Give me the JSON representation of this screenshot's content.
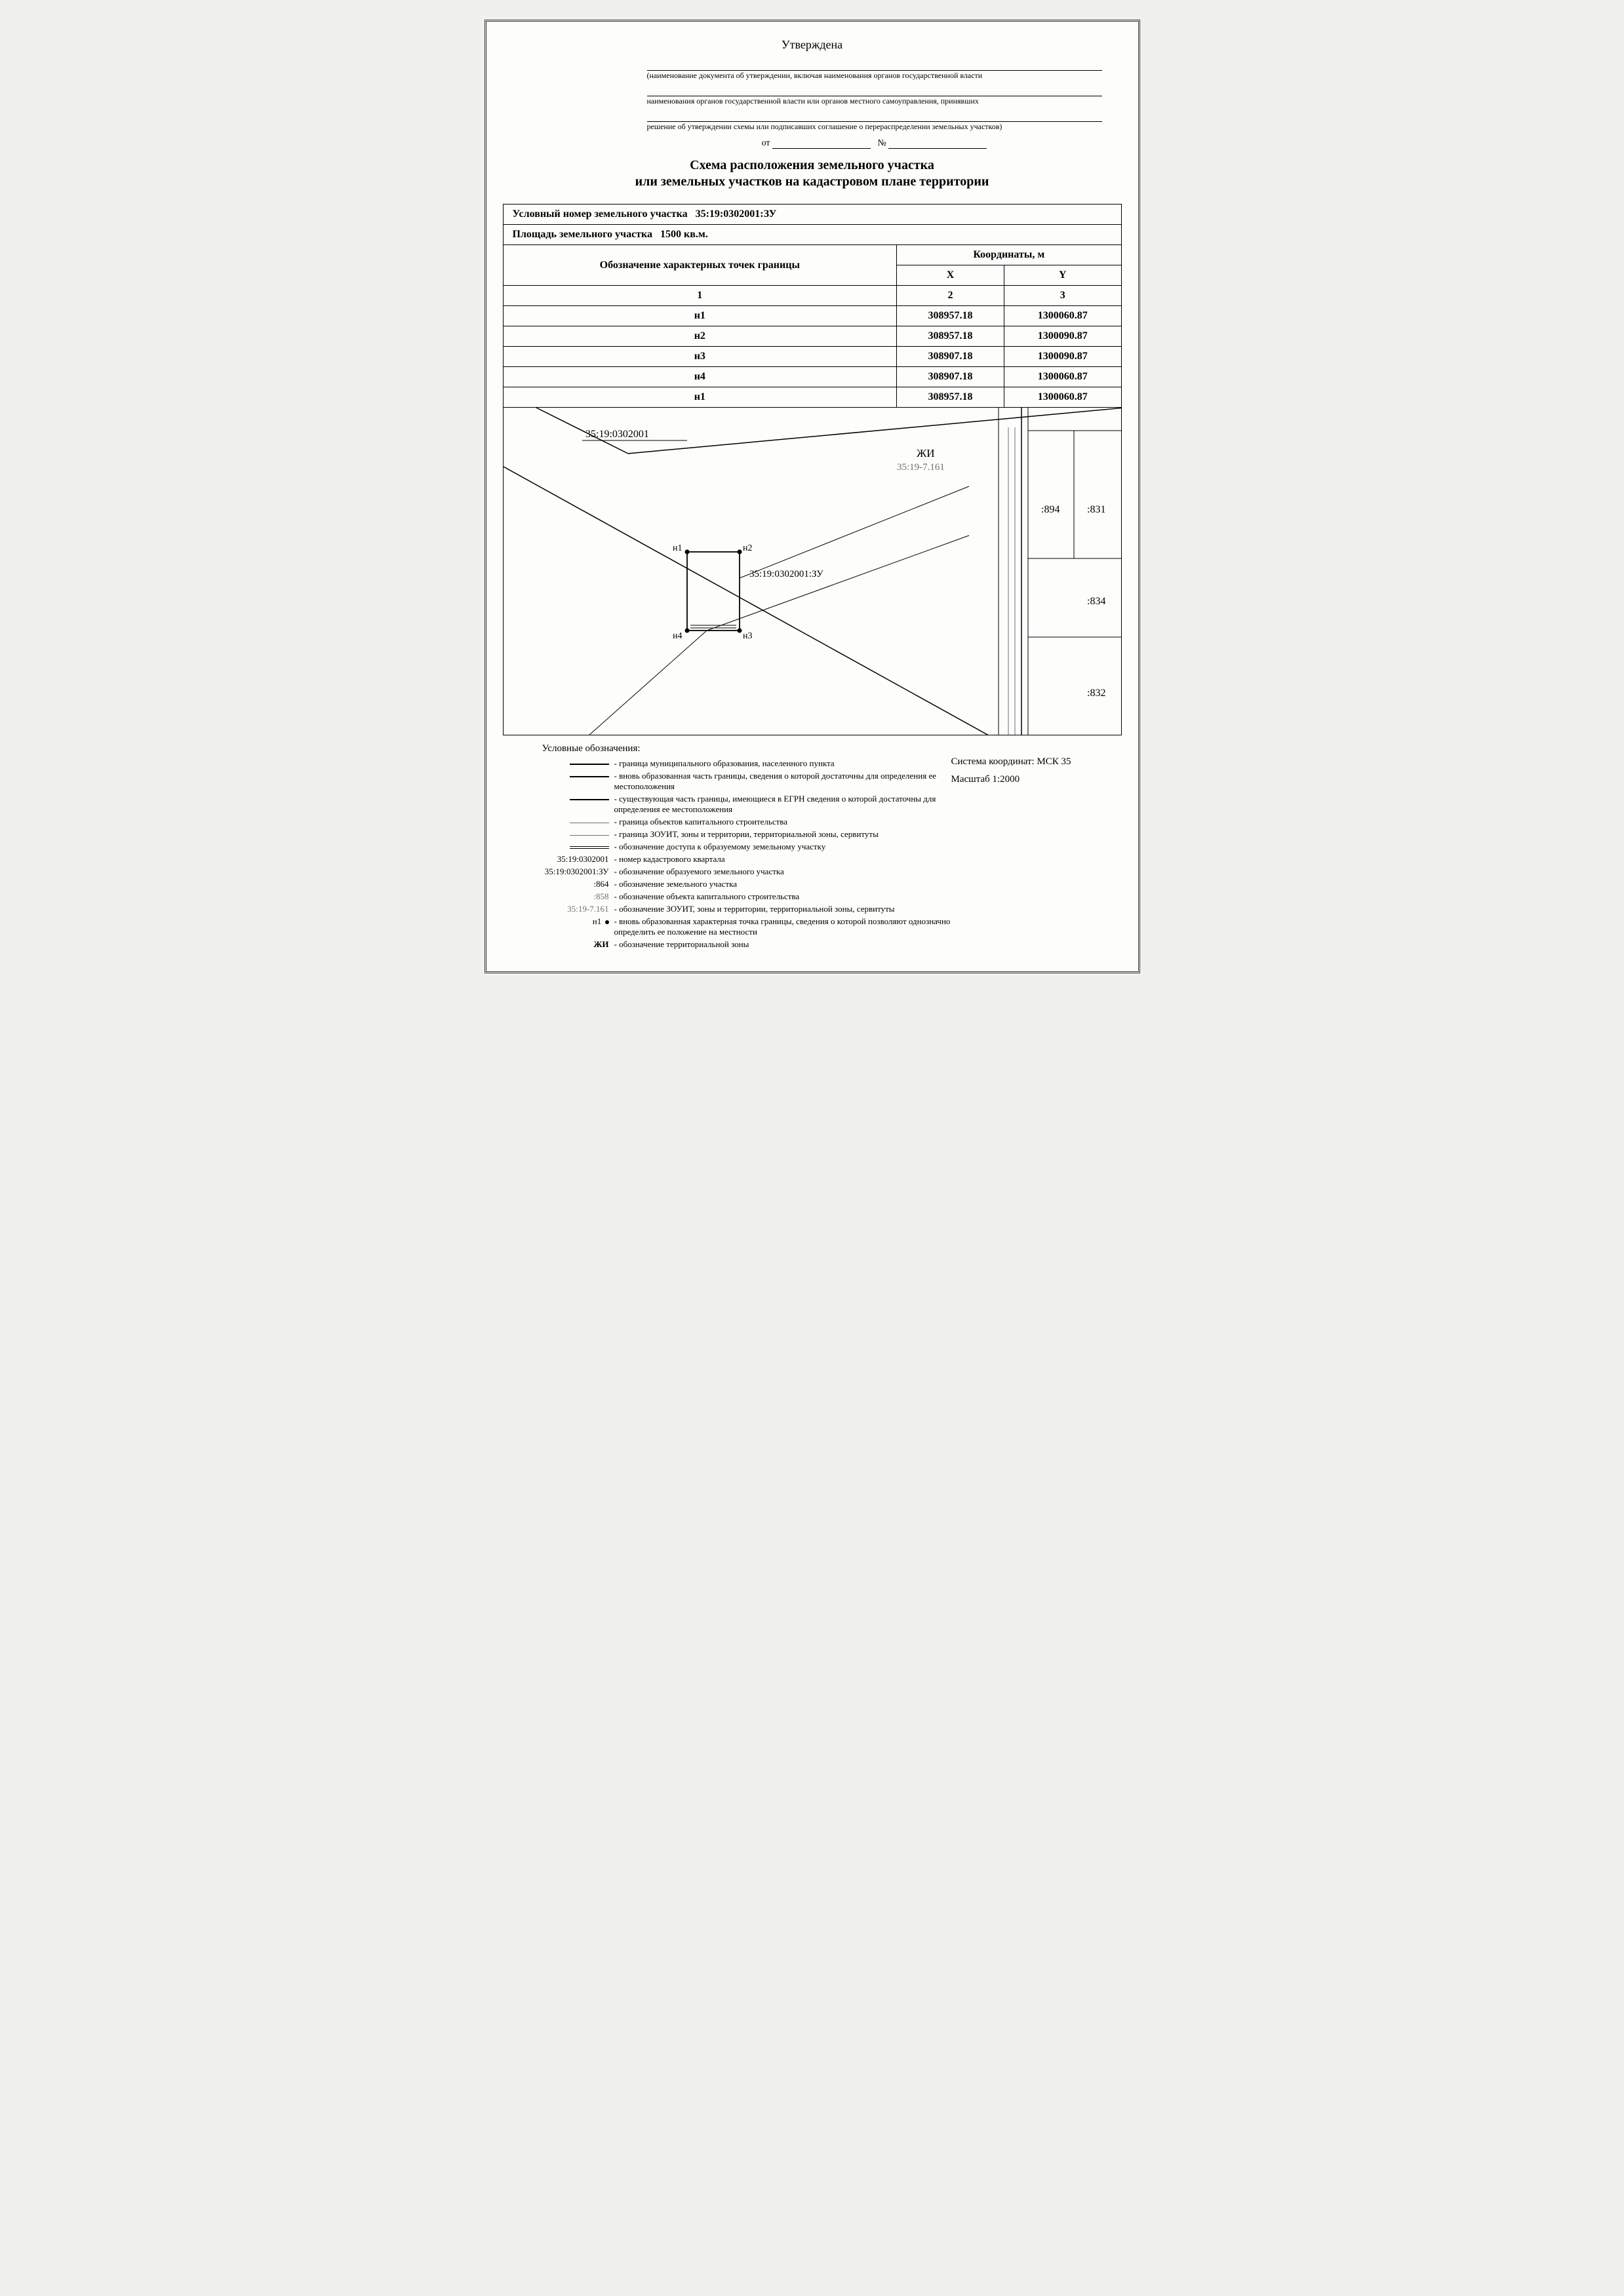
{
  "header": {
    "approved": "Утверждена",
    "caption1": "(наименование документа об утверждении, включая наименования органов государственной власти",
    "caption2": "наименования органов государственной власти или органов местного самоуправления, принявших",
    "caption3": "решение об утверждении схемы или подписавших соглашение о перераспределении земельных участков)",
    "ot": "от",
    "num": "№"
  },
  "title": {
    "line1": "Схема расположения земельного участка",
    "line2": "или земельных участков на кадастровом плане территории"
  },
  "info": {
    "cond_num_label": "Условный номер земельного участка",
    "cond_num": "35:19:0302001:ЗУ",
    "area_label": "Площадь земельного участка",
    "area": "1500 кв.м."
  },
  "table": {
    "col_points": "Обозначение характерных точек границы",
    "col_coords": "Координаты, м",
    "col_x": "X",
    "col_y": "Y",
    "h1": "1",
    "h2": "2",
    "h3": "3",
    "rows": [
      {
        "p": "н1",
        "x": "308957.18",
        "y": "1300060.87"
      },
      {
        "p": "н2",
        "x": "308957.18",
        "y": "1300090.87"
      },
      {
        "p": "н3",
        "x": "308907.18",
        "y": "1300090.87"
      },
      {
        "p": "н4",
        "x": "308907.18",
        "y": "1300060.87"
      },
      {
        "p": "н1",
        "x": "308957.18",
        "y": "1300060.87"
      }
    ]
  },
  "map": {
    "quarter_label": "35:19:0302001",
    "zone_label": "ЖИ",
    "zone_code": "35:19-7.161",
    "parcel_label": "35:19:0302001:ЗУ",
    "p894": ":894",
    "p831": ":831",
    "p834": ":834",
    "p832": ":832",
    "n1": "н1",
    "n2": "н2",
    "n3": "н3",
    "n4": "н4",
    "colors": {
      "line": "#000000",
      "gray": "#707070",
      "bg": "#fdfdfb"
    }
  },
  "legend": {
    "title": "Условные обозначения:",
    "items": [
      {
        "sym": "line_thick",
        "txt": "- граница муниципального образования, населенного пункта"
      },
      {
        "sym": "line_thick",
        "txt": "- вновь образованная часть границы, сведения о которой достаточны для определения ее местоположения"
      },
      {
        "sym": "line_thick",
        "txt": "- существующая часть границы, имеющиеся в ЕГРН сведения о которой достаточны для определения ее местоположения"
      },
      {
        "sym": "line_gray",
        "txt": "- граница объектов капитального строительства"
      },
      {
        "sym": "line_gray",
        "txt": "- граница ЗОУИТ, зоны и территории, территориальной зоны, сервитуты"
      },
      {
        "sym": "line_double",
        "txt": "- обозначение доступа к образуемому земельному участку"
      },
      {
        "sym": "txt",
        "label": "35:19:0302001",
        "txt": "- номер кадастрового квартала"
      },
      {
        "sym": "txt",
        "label": "35:19:0302001:ЗУ",
        "txt": "- обозначение образуемого земельного участка"
      },
      {
        "sym": "txt",
        "label": ":864",
        "txt": "- обозначение земельного участка"
      },
      {
        "sym": "txt_gray",
        "label": ":858",
        "txt": "- обозначение объекта капитального строительства"
      },
      {
        "sym": "txt_gray",
        "label": "35:19-7.161",
        "txt": "- обозначение ЗОУИТ, зоны и территории, территориальной зоны, сервитуты"
      },
      {
        "sym": "pt",
        "label": "н1",
        "txt": "- вновь образованная характерная точка границы, сведения о которой позволяют однозначно определить ее положение на местности"
      },
      {
        "sym": "txt_bold",
        "label": "ЖИ",
        "txt": "- обозначение территориальной зоны"
      }
    ],
    "crs": "Система координат: МСК 35",
    "scale": "Масштаб 1:2000"
  }
}
